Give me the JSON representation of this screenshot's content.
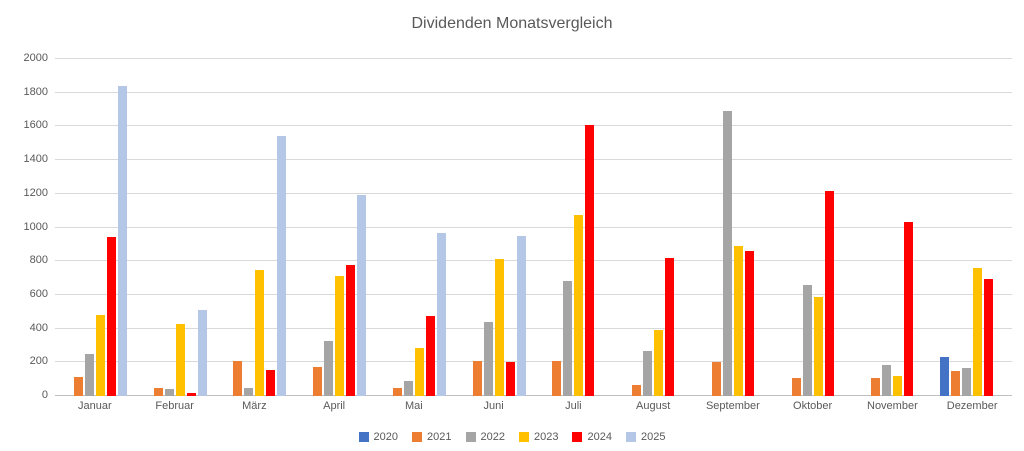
{
  "chart_data": {
    "type": "bar",
    "title": "Dividenden Monatsvergleich",
    "categories": [
      "Januar",
      "Februar",
      "März",
      "April",
      "Mai",
      "Juni",
      "Juli",
      "August",
      "September",
      "Oktober",
      "November",
      "Dezember"
    ],
    "series": [
      {
        "name": "2020",
        "color": "#4472C4",
        "values": [
          0,
          0,
          0,
          0,
          0,
          0,
          0,
          0,
          0,
          0,
          0,
          230
        ]
      },
      {
        "name": "2021",
        "color": "#ED7D31",
        "values": [
          110,
          45,
          210,
          170,
          50,
          205,
          210,
          65,
          200,
          105,
          105,
          150
        ]
      },
      {
        "name": "2022",
        "color": "#A5A5A5",
        "values": [
          250,
          40,
          45,
          325,
          90,
          440,
          680,
          270,
          1690,
          660,
          185,
          165
        ]
      },
      {
        "name": "2023",
        "color": "#FFC000",
        "values": [
          480,
          425,
          745,
          710,
          285,
          815,
          1075,
          390,
          890,
          590,
          120,
          760
        ]
      },
      {
        "name": "2024",
        "color": "#FF0000",
        "values": [
          945,
          15,
          155,
          775,
          475,
          200,
          1610,
          820,
          860,
          1215,
          1030,
          695
        ]
      },
      {
        "name": "2025",
        "color": "#B4C7E7",
        "values": [
          1840,
          510,
          1545,
          1190,
          970,
          950,
          0,
          0,
          0,
          0,
          0,
          0
        ]
      }
    ],
    "ylim": [
      0,
      2000
    ],
    "ytick_step": 200,
    "grid": true,
    "legend_position": "bottom",
    "colors": {
      "title_text": "#595959",
      "axis_text": "#595959",
      "gridline": "#D9D9D9",
      "axis_line": "#BFBFBF",
      "background": "#FFFFFF"
    }
  }
}
